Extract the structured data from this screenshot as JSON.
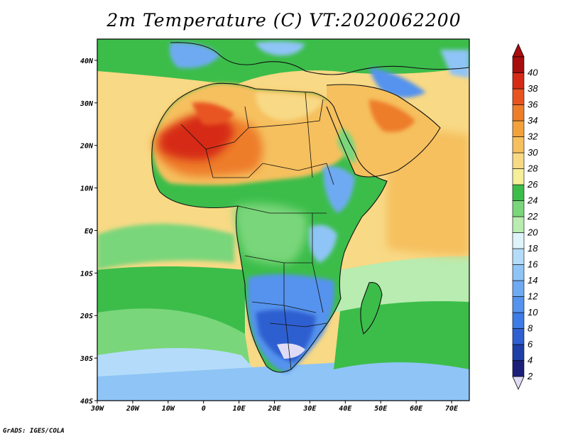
{
  "title": "2m Temperature (C)  VT:2020062200",
  "credit": "GrADS: IGES/COLA",
  "map": {
    "lon_range": [
      -30,
      75
    ],
    "lat_range": [
      -40,
      45
    ],
    "x_ticks": [
      "30W",
      "20W",
      "10W",
      "0",
      "10E",
      "20E",
      "30E",
      "40E",
      "50E",
      "60E",
      "70E"
    ],
    "y_ticks": [
      "40S",
      "30S",
      "20S",
      "10S",
      "EQ",
      "10N",
      "20N",
      "30N",
      "40N"
    ]
  },
  "colorbar": {
    "labels": [
      "2",
      "4",
      "6",
      "8",
      "10",
      "12",
      "14",
      "16",
      "18",
      "20",
      "22",
      "24",
      "26",
      "28",
      "30",
      "32",
      "34",
      "36",
      "38",
      "40"
    ],
    "colors": [
      "#1b1f7a",
      "#1f3fa8",
      "#2f5fd0",
      "#3d7be6",
      "#5593ee",
      "#6eaaf2",
      "#8fc4f6",
      "#b4dcfa",
      "#dff3fb",
      "#b8ecb0",
      "#7ad67a",
      "#3cbd4a",
      "#f6ef9a",
      "#f8d985",
      "#f6c05e",
      "#f3a23b",
      "#ee7d2a",
      "#e85420",
      "#d62a16",
      "#a80d0d"
    ],
    "low_end_color": "#e0dcf6",
    "high_end_color": "#a80d0d"
  },
  "regions": {
    "ocean_north_warm": "#f8d985",
    "ocean_south_cool": "#7ad67a",
    "ocean_far_south": "#8fc4f6",
    "sahara_hot": "#f6c05e",
    "sahel_hottest": "#ee7d2a",
    "west_sahara_core": "#d62a16",
    "central_africa": "#3cbd4a",
    "southern_africa": "#5593ee",
    "highveld": "#2f5fd0",
    "arabia": "#f3a23b",
    "mediterranean": "#3cbd4a",
    "europe": "#6eaaf2"
  }
}
